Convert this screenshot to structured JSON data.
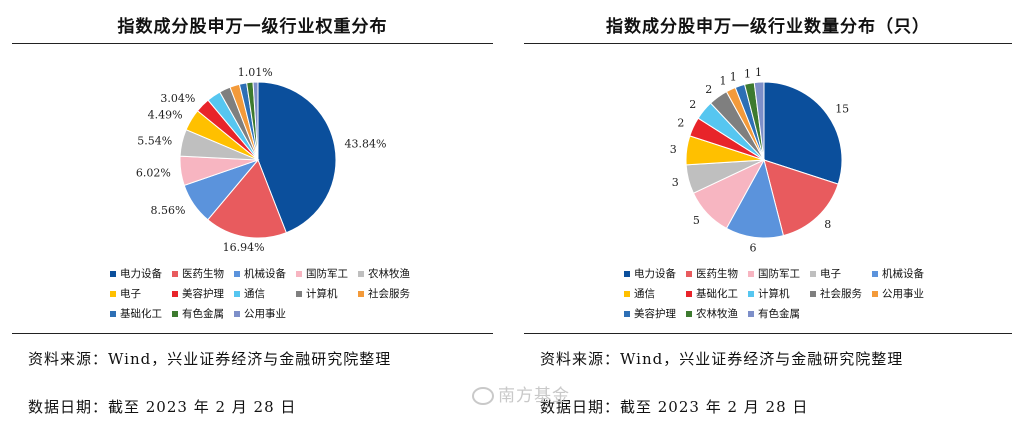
{
  "chart_data": [
    {
      "type": "pie",
      "title": "指数成分股申万一级行业权重分布",
      "labels": [
        "电力设备",
        "医药生物",
        "机械设备",
        "国防军工",
        "农林牧渔",
        "电子",
        "美容护理",
        "通信",
        "计算机",
        "社会服务",
        "基础化工",
        "有色金属",
        "公用事业"
      ],
      "values": [
        43.84,
        16.94,
        8.56,
        6.02,
        5.54,
        4.49,
        3.04,
        2.9,
        2.3,
        2.0,
        1.5,
        1.3,
        1.01
      ],
      "data_labels": [
        "43.84%",
        "16.94%",
        "8.56%",
        "6.02%",
        "5.54%",
        "4.49%",
        "3.04%",
        "",
        "",
        "",
        "",
        "",
        "1.01%"
      ],
      "colors": [
        "#0b4f9c",
        "#e85b5e",
        "#5b93dc",
        "#f7b5c1",
        "#bfbfbf",
        "#ffc000",
        "#e8242a",
        "#56c6f0",
        "#7f7f7f",
        "#f39a3a",
        "#2d6fb5",
        "#3d7a2f",
        "#7d8fc9"
      ],
      "legend_position": "bottom"
    },
    {
      "type": "pie",
      "title": "指数成分股申万一级行业数量分布（只）",
      "labels": [
        "电力设备",
        "医药生物",
        "机械设备",
        "国防军工",
        "电子",
        "通信",
        "基础化工",
        "计算机",
        "社会服务",
        "公用事业",
        "美容护理",
        "农林牧渔",
        "有色金属"
      ],
      "legend_labels": [
        "电力设备",
        "医药生物",
        "国防军工",
        "电子",
        "机械设备",
        "通信",
        "基础化工",
        "计算机",
        "社会服务",
        "公用事业",
        "美容护理",
        "农林牧渔",
        "有色金属"
      ],
      "values": [
        15,
        8,
        6,
        5,
        3,
        3,
        2,
        2,
        2,
        1,
        1,
        1,
        1
      ],
      "data_labels": [
        "15",
        "8",
        "6",
        "5",
        "3",
        "3",
        "2",
        "2",
        "2",
        "1",
        "1",
        "1",
        "1"
      ],
      "colors": [
        "#0b4f9c",
        "#e85b5e",
        "#5b93dc",
        "#f7b5c1",
        "#bfbfbf",
        "#ffc000",
        "#e8242a",
        "#56c6f0",
        "#7f7f7f",
        "#f39a3a",
        "#2d6fb5",
        "#3d7a2f",
        "#7d8fc9"
      ],
      "legend_position": "bottom"
    }
  ],
  "footer": {
    "source_left": "资料来源：Wind，兴业证券经济与金融研究院整理",
    "date_left": "数据日期：截至 2023 年 2 月 28 日",
    "source_right": "资料来源：Wind，兴业证券经济与金融研究院整理",
    "date_right": "数据日期：截至 2023 年 2 月 28 日"
  },
  "watermark": "南方基金"
}
